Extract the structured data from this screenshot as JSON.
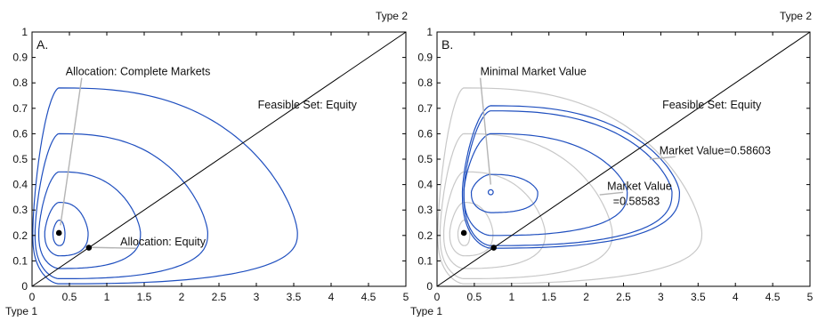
{
  "colors": {
    "contour": "#1f4fbf",
    "contour_gray": "#c8c8c8",
    "leader": "#b4b4b4",
    "axis": "#000000"
  },
  "chart_data": [
    {
      "type": "line",
      "panel_label": "A.",
      "xlabel": "Type 1",
      "ylabel": "Type 2",
      "xlim": [
        0,
        5
      ],
      "ylim": [
        0,
        1
      ],
      "xticks": [
        "0",
        "0.5",
        "1",
        "1.5",
        "2",
        "2.5",
        "3",
        "3.5",
        "4",
        "4.5",
        "5"
      ],
      "yticks": [
        "0",
        "0.1",
        "0.2",
        "0.3",
        "0.4",
        "0.5",
        "0.6",
        "0.7",
        "0.8",
        "0.9",
        "1"
      ],
      "grid": false,
      "feasible_set_line": {
        "x": [
          0,
          5
        ],
        "y": [
          0,
          1
        ]
      },
      "contours": [
        {
          "center": [
            0.36,
            0.21
          ],
          "x_range": [
            0.28,
            0.44
          ],
          "y_range": [
            0.16,
            0.26
          ]
        },
        {
          "center": [
            0.36,
            0.21
          ],
          "x_range": [
            0.17,
            0.75
          ],
          "y_range": [
            0.12,
            0.33
          ]
        },
        {
          "center": [
            0.36,
            0.21
          ],
          "x_range": [
            0.09,
            1.45
          ],
          "y_range": [
            0.07,
            0.45
          ]
        },
        {
          "center": [
            0.36,
            0.21
          ],
          "x_range": [
            0.04,
            2.35
          ],
          "y_range": [
            0.03,
            0.6
          ]
        },
        {
          "center": [
            0.36,
            0.21
          ],
          "x_range": [
            0.01,
            3.55
          ],
          "y_range": [
            0.01,
            0.78
          ]
        }
      ],
      "points": [
        {
          "x": 0.36,
          "y": 0.21,
          "fill": true
        },
        {
          "x": 0.76,
          "y": 0.152,
          "fill": true
        }
      ],
      "annotations": [
        {
          "text": "Allocation: Complete Markets",
          "x": 0.45,
          "y": 0.83,
          "target": [
            0.38,
            0.24
          ]
        },
        {
          "text": "Allocation: Equity",
          "x": 1.18,
          "y": 0.16,
          "target": [
            0.8,
            0.153
          ]
        },
        {
          "text": "Feasible Set: Equity",
          "x": 3.02,
          "y": 0.7
        }
      ]
    },
    {
      "type": "line",
      "panel_label": "B.",
      "xlabel": "Type 1",
      "ylabel": "Type 2",
      "xlim": [
        0,
        5
      ],
      "ylim": [
        0,
        1
      ],
      "xticks": [
        "0",
        "0.5",
        "1",
        "1.5",
        "2",
        "2.5",
        "3",
        "3.5",
        "4",
        "4.5",
        "5"
      ],
      "yticks": [
        "0",
        "0.1",
        "0.2",
        "0.3",
        "0.4",
        "0.5",
        "0.6",
        "0.7",
        "0.8",
        "0.9",
        "1"
      ],
      "grid": false,
      "feasible_set_line": {
        "x": [
          0,
          5
        ],
        "y": [
          0,
          1
        ]
      },
      "background_contours": [
        {
          "center": [
            0.36,
            0.21
          ],
          "x_range": [
            0.28,
            0.44
          ],
          "y_range": [
            0.16,
            0.26
          ]
        },
        {
          "center": [
            0.36,
            0.21
          ],
          "x_range": [
            0.17,
            0.75
          ],
          "y_range": [
            0.12,
            0.33
          ]
        },
        {
          "center": [
            0.36,
            0.21
          ],
          "x_range": [
            0.09,
            1.45
          ],
          "y_range": [
            0.07,
            0.45
          ]
        },
        {
          "center": [
            0.36,
            0.21
          ],
          "x_range": [
            0.04,
            2.35
          ],
          "y_range": [
            0.03,
            0.6
          ]
        },
        {
          "center": [
            0.36,
            0.21
          ],
          "x_range": [
            0.01,
            3.55
          ],
          "y_range": [
            0.01,
            0.78
          ]
        }
      ],
      "contours": [
        {
          "center": [
            0.72,
            0.37
          ],
          "x_range": [
            0.46,
            1.35
          ],
          "y_range": [
            0.29,
            0.44
          ]
        },
        {
          "center": [
            0.72,
            0.37
          ],
          "x_range": [
            0.36,
            2.55
          ],
          "y_range": [
            0.2,
            0.6
          ]
        },
        {
          "center": [
            0.72,
            0.37
          ],
          "x_range": [
            0.36,
            3.15
          ],
          "y_range": [
            0.16,
            0.69
          ]
        },
        {
          "center": [
            0.72,
            0.37
          ],
          "x_range": [
            0.34,
            3.25
          ],
          "y_range": [
            0.15,
            0.71
          ]
        }
      ],
      "points": [
        {
          "x": 0.36,
          "y": 0.21,
          "fill": true
        },
        {
          "x": 0.76,
          "y": 0.152,
          "fill": true
        },
        {
          "x": 0.72,
          "y": 0.37,
          "fill": false
        }
      ],
      "annotations": [
        {
          "text": "Minimal Market Value",
          "x": 0.58,
          "y": 0.83,
          "target": [
            0.72,
            0.4
          ]
        },
        {
          "text": "Market Value=0.58603",
          "x": 2.98,
          "y": 0.52,
          "target": [
            2.85,
            0.5
          ]
        },
        {
          "text": "Market Value",
          "x": 2.28,
          "y": 0.38,
          "target": [
            2.18,
            0.36
          ]
        },
        {
          "text": "=0.58583",
          "x": 2.36,
          "y": 0.32
        },
        {
          "text": "Feasible Set: Equity",
          "x": 3.02,
          "y": 0.7
        }
      ]
    }
  ]
}
